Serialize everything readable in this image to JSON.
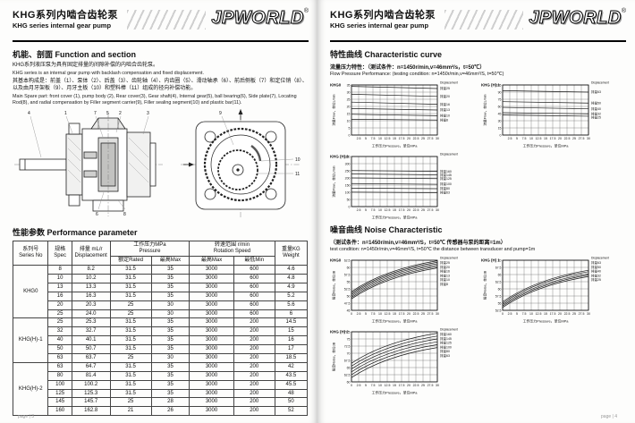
{
  "header": {
    "title_zh": "KHG系列内啮合齿轮泵",
    "title_en": "KHG series internal gear pump",
    "logo": "JPWORLD",
    "logo_reg": "®"
  },
  "page_left": {
    "section_function": {
      "heading": "机能、剖面 Function and section",
      "zh1": "KHG系列液压泵为具有固定排量的间隙补偿的内啮合齿轮泵。",
      "en1": "KHG series is an internal gear pump with backlash compensation and fixed displacement.",
      "zh2": "其基本构成是：前盖（1）、泵体（2）、后盖（3）、齿轮轴（4）、内齿圈（5）、滑动轴承（6）、前后侧板（7）和定位销（8）、以及由月牙架板（9）、月牙主板（10）和塑料棒（11）组成的径向补偿功能。",
      "en2": "Main Spare part: front cover (1), pump body (2), Rear cover(3), Gear shaft(4), Internal gear(5), ball bearing(6), Side plate(7), Locating Rod(8), and radial compensation by Filler segment carrier(9), Filler sealing segment(10) and plastic bar(11)."
    },
    "drawing": {
      "callouts": [
        "4",
        "1",
        "7",
        "5",
        "2",
        "3",
        "6",
        "8",
        "9",
        "10",
        "11"
      ]
    },
    "section_performance": {
      "heading": "性能参数 Performance parameter"
    },
    "table": {
      "headers": {
        "series_zh": "系列号",
        "series_en": "Series No",
        "spec_zh": "规格",
        "spec_en": "Spec",
        "disp_zh": "排量 mL/r",
        "disp_en": "Displacement",
        "pressure_zh": "工作压力MPa",
        "pressure_en": "Pressure",
        "speed_zh": "转速范围 r/min",
        "speed_en": "Rotation Speed",
        "weight_zh": "重量KG",
        "weight_en": "Weight",
        "rated": "额定Rated",
        "max": "最高Max",
        "speed_max": "最高Max",
        "speed_min": "最低Min"
      },
      "groups": [
        {
          "series": "KHG0",
          "rows": [
            [
              "8",
              "8.2",
              "31.5",
              "35",
              "3000",
              "600",
              "4.6"
            ],
            [
              "10",
              "10.2",
              "31.5",
              "35",
              "3000",
              "600",
              "4.8"
            ],
            [
              "13",
              "13.3",
              "31.5",
              "35",
              "3000",
              "600",
              "4.9"
            ],
            [
              "16",
              "16.3",
              "31.5",
              "35",
              "3000",
              "600",
              "5.2"
            ],
            [
              "20",
              "20.3",
              "25",
              "30",
              "3000",
              "600",
              "5.6"
            ],
            [
              "25",
              "24.0",
              "25",
              "30",
              "3000",
              "600",
              "6"
            ]
          ]
        },
        {
          "series": "KHG(H)-1",
          "rows": [
            [
              "25",
              "25.3",
              "31.5",
              "35",
              "3000",
              "200",
              "14.5"
            ],
            [
              "32",
              "32.7",
              "31.5",
              "35",
              "3000",
              "200",
              "15"
            ],
            [
              "40",
              "40.1",
              "31.5",
              "35",
              "3000",
              "200",
              "16"
            ],
            [
              "50",
              "50.7",
              "31.5",
              "35",
              "3000",
              "200",
              "17"
            ],
            [
              "63",
              "63.7",
              "25",
              "30",
              "3000",
              "200",
              "18.5"
            ]
          ]
        },
        {
          "series": "KHG(H)-2",
          "rows": [
            [
              "63",
              "64.7",
              "31.5",
              "35",
              "3000",
              "200",
              "42"
            ],
            [
              "80",
              "81.4",
              "31.5",
              "35",
              "3000",
              "200",
              "43.5"
            ],
            [
              "100",
              "100.2",
              "31.5",
              "35",
              "3000",
              "200",
              "45.5"
            ],
            [
              "125",
              "125.3",
              "31.5",
              "35",
              "3000",
              "200",
              "48"
            ],
            [
              "145",
              "145.7",
              "25",
              "28",
              "3000",
              "200",
              "50"
            ],
            [
              "160",
              "162.8",
              "21",
              "26",
              "3000",
              "200",
              "52"
            ]
          ]
        }
      ]
    },
    "footer": "page | 3"
  },
  "page_right": {
    "section_curve": {
      "heading": "特性曲线 Characteristic curve",
      "cond_zh": "流量压力特性：（测试条件：n=1450r/min,v=46mm²/s，t=50℃）",
      "cond_en": "Flow Pressure Performance: (testing condition: n=1450r/min,v=46mm²/S, t=50℃)"
    },
    "section_noise": {
      "heading": "噪音曲线 Noise Characteristic",
      "cond_zh": "（测试条件：n=1450r/min,v=46mm²/S，t=50℃ 传感器与泵的距离=1m）",
      "cond_en": "test condition: n=1450r/min,v=46mm²/S, t=50℃ the distance between transducer and pump=1m"
    },
    "footer": "page | 4"
  },
  "chart_data": [
    {
      "id": "flow-khg0",
      "label": "KHG0",
      "type": "line",
      "curve": false,
      "legend_mode": "line",
      "title": "KHG0 flow vs pressure",
      "xlabel": "工作压力Pressure，单位MPa",
      "ylabel": "流量Flow，单位L/min",
      "legend_title": "Displacement",
      "x_range": [
        0,
        30
      ],
      "x_ticks": [
        2.5,
        5,
        7.5,
        10,
        12.5,
        15,
        17.5,
        20,
        22.5,
        25,
        27.5,
        30
      ],
      "y_range": [
        0,
        35
      ],
      "y_ticks": [
        0,
        5,
        10,
        15,
        20,
        25,
        30,
        35
      ],
      "series": [
        {
          "name": "排量25",
          "start": 34,
          "end": 32.5
        },
        {
          "name": "排量20",
          "start": 28.5,
          "end": 27
        },
        {
          "name": "排量16",
          "start": 23,
          "end": 21.5
        },
        {
          "name": "排量13",
          "start": 18.5,
          "end": 17.5
        },
        {
          "name": "排量10",
          "start": 14.5,
          "end": 13.5
        },
        {
          "name": "排量8",
          "start": 11,
          "end": 10.5
        }
      ]
    },
    {
      "id": "flow-khg1",
      "label": "KHG (H) 1",
      "type": "line",
      "curve": false,
      "legend_mode": "line",
      "title": "KHG (H) 1 flow vs pressure",
      "xlabel": "工作压力Pressure，单位MPa",
      "ylabel": "流量Flow，单位L/min",
      "legend_title": "Displacement",
      "x_range": [
        0,
        30
      ],
      "x_ticks": [
        2.5,
        5,
        7.5,
        10,
        12.5,
        15,
        17.5,
        20,
        22.5,
        25,
        27.5,
        30
      ],
      "y_range": [
        0,
        105
      ],
      "y_ticks": [
        0,
        15,
        30,
        45,
        60,
        75,
        90,
        105
      ],
      "series": [
        {
          "name": "排量63",
          "start": 93,
          "end": 90
        },
        {
          "name": "排量50",
          "start": 70,
          "end": 67
        },
        {
          "name": "排量40",
          "start": 58,
          "end": 55
        },
        {
          "name": "排量32",
          "start": 47,
          "end": 44.5
        },
        {
          "name": "排量25",
          "start": 42,
          "end": 39.5
        }
      ]
    },
    {
      "id": "flow-khg2",
      "label": "KHG (H) 2",
      "type": "line",
      "curve": false,
      "legend_mode": "line",
      "title": "KHG (H) 2 flow vs pressure",
      "xlabel": "工作压力Pressure，单位MPa",
      "ylabel": "流量Flow，单位L/min",
      "legend_title": "Displacement",
      "x_range": [
        0,
        30
      ],
      "x_ticks": [
        2.5,
        5,
        7.5,
        10,
        12.5,
        15,
        17.5,
        20,
        22.5,
        25,
        27.5,
        30
      ],
      "y_range": [
        0,
        350
      ],
      "y_ticks": [
        0,
        50,
        100,
        150,
        200,
        250,
        300,
        350
      ],
      "series": [
        {
          "name": "排量160",
          "start": 252,
          "end": 246
        },
        {
          "name": "排量145",
          "start": 228,
          "end": 222
        },
        {
          "name": "排量125",
          "start": 200,
          "end": 195
        },
        {
          "name": "排量100",
          "start": 161,
          "end": 156
        },
        {
          "name": "排量80",
          "start": 129,
          "end": 125
        },
        {
          "name": "排量63",
          "start": 101,
          "end": 97
        }
      ]
    },
    {
      "id": "noise-khg0",
      "label": "KHG0",
      "type": "line",
      "curve": true,
      "legend_mode": "stack",
      "title": "KHG0 noise vs pressure",
      "xlabel": "工作压力Pressure，单位MPa",
      "ylabel": "噪音Noise，单位dB",
      "legend_title": "Displacement",
      "x_range": [
        0,
        30
      ],
      "x_ticks": [
        0,
        2.5,
        5,
        7.5,
        10,
        12.5,
        15,
        17.5,
        20,
        22.5,
        25,
        27.5,
        30
      ],
      "y_range": [
        45,
        62.5
      ],
      "y_ticks": [
        45,
        47.5,
        50,
        52.5,
        55,
        57.5,
        60,
        62.5
      ],
      "series": [
        {
          "name": "排量25",
          "start": 51.5,
          "end": 62.3
        },
        {
          "name": "排量20",
          "start": 51,
          "end": 61.8
        },
        {
          "name": "排量16",
          "start": 50.5,
          "end": 61.3
        },
        {
          "name": "排量13",
          "start": 50,
          "end": 60.8
        },
        {
          "name": "排量10",
          "start": 49.5,
          "end": 60.3
        },
        {
          "name": "排量8",
          "start": 49,
          "end": 59.8
        }
      ]
    },
    {
      "id": "noise-khg1",
      "label": "KHG (H) 1",
      "type": "line",
      "curve": true,
      "legend_mode": "stack",
      "title": "KHG (H) 1 noise vs pressure",
      "xlabel": "工作压力Pressure，单位MPa",
      "ylabel": "噪音Noise，单位dB",
      "legend_title": "Displacement",
      "x_range": [
        0,
        30
      ],
      "x_ticks": [
        0,
        2.5,
        5,
        7.5,
        10,
        12.5,
        15,
        17.5,
        20,
        22.5,
        25,
        27.5,
        30
      ],
      "y_range": [
        52.5,
        70
      ],
      "y_ticks": [
        52.5,
        55,
        57.5,
        60,
        62.5,
        65,
        67.5,
        70
      ],
      "series": [
        {
          "name": "排量63",
          "start": 55.5,
          "end": 66.5
        },
        {
          "name": "排量50",
          "start": 55,
          "end": 66
        },
        {
          "name": "排量40",
          "start": 54.5,
          "end": 65.3
        },
        {
          "name": "排量32",
          "start": 54,
          "end": 64.8
        },
        {
          "name": "排量25",
          "start": 53.5,
          "end": 64.3
        }
      ]
    },
    {
      "id": "noise-khg2",
      "label": "KHG (H) 2",
      "type": "line",
      "curve": true,
      "legend_mode": "stack",
      "title": "KHG (H) 2 noise vs pressure",
      "xlabel": "工作压力Pressure，单位MPa",
      "ylabel": "噪音Noise，单位dB",
      "legend_title": "Displacement",
      "x_range": [
        0,
        30
      ],
      "x_ticks": [
        0,
        2.5,
        5,
        7.5,
        10,
        12.5,
        15,
        17.5,
        20,
        22.5,
        25,
        27.5,
        30
      ],
      "y_range": [
        60,
        77.5
      ],
      "y_ticks": [
        60,
        62.5,
        65,
        67.5,
        70,
        72.5,
        75,
        77.5
      ],
      "series": [
        {
          "name": "排量160",
          "start": 66.5,
          "end": 77
        },
        {
          "name": "排量145",
          "start": 65.5,
          "end": 76
        },
        {
          "name": "排量125",
          "start": 64.5,
          "end": 75
        },
        {
          "name": "排量100",
          "start": 63.5,
          "end": 74
        },
        {
          "name": "排量80",
          "start": 62.5,
          "end": 73
        },
        {
          "name": "排量63",
          "start": 61.5,
          "end": 72
        }
      ]
    }
  ]
}
